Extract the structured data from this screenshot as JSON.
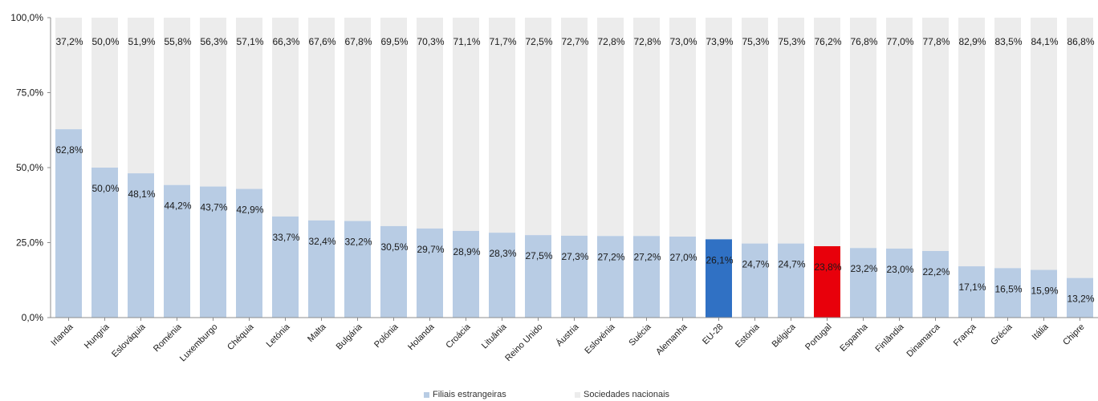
{
  "chart_data": {
    "type": "bar",
    "stacked": true,
    "categories": [
      "Irlanda",
      "Hungria",
      "Eslováquia",
      "Roménia",
      "Luxemburgo",
      "Chéquia",
      "Letónia",
      "Malta",
      "Bulgária",
      "Polónia",
      "Holanda",
      "Croácia",
      "Lituânia",
      "Reino Unido",
      "Áustria",
      "Eslovénia",
      "Suécia",
      "Alemanha",
      "EU-28",
      "Estónia",
      "Bélgica",
      "Portugal",
      "Espanha",
      "Finlândia",
      "Dinamarca",
      "França",
      "Grécia",
      "Itália",
      "Chipre"
    ],
    "series": [
      {
        "name": "Filiais estrangeiras",
        "color": "#b8cce4",
        "values": [
          62.8,
          50.0,
          48.1,
          44.2,
          43.7,
          42.9,
          33.7,
          32.4,
          32.2,
          30.5,
          29.7,
          28.9,
          28.3,
          27.5,
          27.3,
          27.2,
          27.2,
          27.0,
          26.1,
          24.7,
          24.7,
          23.8,
          23.2,
          23.0,
          22.2,
          17.1,
          16.5,
          15.9,
          13.2
        ],
        "labels": [
          "62,8%",
          "50,0%",
          "48,1%",
          "44,2%",
          "43,7%",
          "42,9%",
          "33,7%",
          "32,4%",
          "32,2%",
          "30,5%",
          "29,7%",
          "28,9%",
          "28,3%",
          "27,5%",
          "27,3%",
          "27,2%",
          "27,2%",
          "27,0%",
          "26,1%",
          "24,7%",
          "24,7%",
          "23,8%",
          "23,2%",
          "23,0%",
          "22,2%",
          "17,1%",
          "16,5%",
          "15,9%",
          "13,2%"
        ]
      },
      {
        "name": "Sociedades nacionais",
        "color": "#ececec",
        "values": [
          37.2,
          50.0,
          51.9,
          55.8,
          56.3,
          57.1,
          66.3,
          67.6,
          67.8,
          69.5,
          70.3,
          71.1,
          71.7,
          72.5,
          72.7,
          72.8,
          72.8,
          73.0,
          73.9,
          75.3,
          75.3,
          76.2,
          76.8,
          77.0,
          77.8,
          82.9,
          83.5,
          84.1,
          86.8
        ],
        "labels": [
          "37,2%",
          "50,0%",
          "51,9%",
          "55,8%",
          "56,3%",
          "57,1%",
          "66,3%",
          "67,6%",
          "67,8%",
          "69,5%",
          "70,3%",
          "71,1%",
          "71,7%",
          "72,5%",
          "72,7%",
          "72,8%",
          "72,8%",
          "73,0%",
          "73,9%",
          "75,3%",
          "75,3%",
          "76,2%",
          "76,8%",
          "77,0%",
          "77,8%",
          "82,9%",
          "83,5%",
          "84,1%",
          "86,8%"
        ]
      }
    ],
    "highlights": {
      "EU-28": "#3071c4",
      "Portugal": "#e8000b"
    },
    "yticks": [
      "0,0%",
      "25,0%",
      "50,0%",
      "75,0%",
      "100,0%"
    ],
    "ylim": [
      0,
      100
    ],
    "title": "",
    "xlabel": "",
    "ylabel": "",
    "grid": false,
    "legend_position": "bottom"
  }
}
